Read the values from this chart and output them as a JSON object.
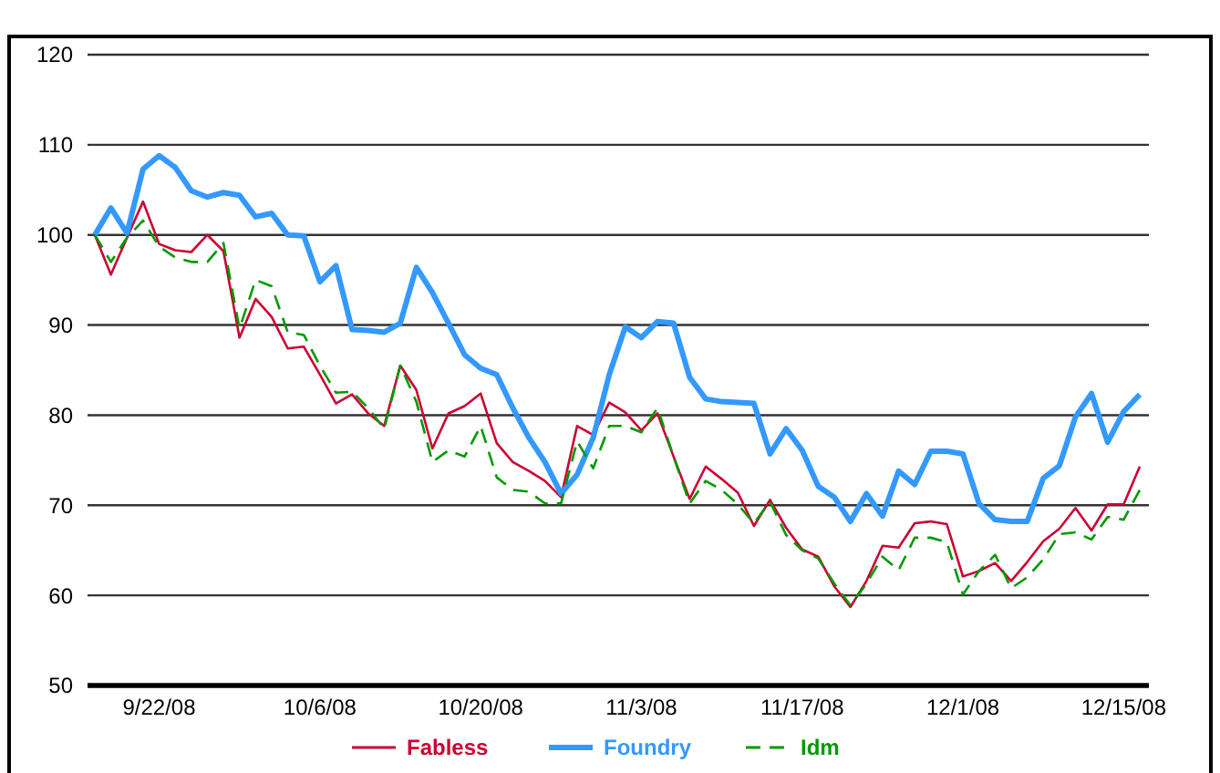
{
  "chart_data": {
    "type": "line",
    "categories": [
      null,
      null,
      null,
      null,
      "9/22/08",
      null,
      null,
      null,
      null,
      null,
      null,
      null,
      null,
      null,
      "10/6/08",
      null,
      null,
      null,
      null,
      null,
      null,
      null,
      null,
      null,
      "10/20/08",
      null,
      null,
      null,
      null,
      null,
      null,
      null,
      null,
      null,
      "11/3/08",
      null,
      null,
      null,
      null,
      null,
      null,
      null,
      null,
      null,
      "11/17/08",
      null,
      null,
      null,
      null,
      null,
      null,
      null,
      null,
      null,
      "12/1/08",
      null,
      null,
      null,
      null,
      null,
      null,
      null,
      null,
      null,
      "12/15/08",
      null
    ],
    "series": [
      {
        "name": "Fabless",
        "color": "#cc0033",
        "line_style": "solid",
        "values": [
          100,
          95.6,
          99.7,
          103.7,
          99.0,
          98.3,
          98.1,
          100,
          98.2,
          88.6,
          92.9,
          90.9,
          87.4,
          87.6,
          84.5,
          81.3,
          82.3,
          80.2,
          78.8,
          85.5,
          82.8,
          76.3,
          80.2,
          81.0,
          82.4,
          76.9,
          74.8,
          73.8,
          72.7,
          70.9,
          78.8,
          77.8,
          81.4,
          80.3,
          78.3,
          80.2,
          75.4,
          70.7,
          74.3,
          72.9,
          71.4,
          67.7,
          70.6,
          67.5,
          65.1,
          64.3,
          61.0,
          58.7,
          61.6,
          65.5,
          65.3,
          68.0,
          68.2,
          67.9,
          62.1,
          62.7,
          63.6,
          61.6,
          63.7,
          66.0,
          67.4,
          69.7,
          67.2,
          70.1,
          70.1,
          74.3
        ]
      },
      {
        "name": "Foundry",
        "color": "#3399ff",
        "line_style": "solid",
        "values": [
          100,
          103,
          100.2,
          107.3,
          108.8,
          107.5,
          104.9,
          104.2,
          104.7,
          104.4,
          102.0,
          102.4,
          100.0,
          99.9,
          94.8,
          96.6,
          89.5,
          89.4,
          89.2,
          90.2,
          96.4,
          93.6,
          90.2,
          86.7,
          85.2,
          84.5,
          80.8,
          77.5,
          74.8,
          71.3,
          73.4,
          77.5,
          84.5,
          89.8,
          88.6,
          90.4,
          90.2,
          84.2,
          81.8,
          81.5,
          81.4,
          81.3,
          75.7,
          78.5,
          76.1,
          72.1,
          70.9,
          68.2,
          71.3,
          68.8,
          73.8,
          72.3,
          76.0,
          76.0,
          75.7,
          70.2,
          68.4,
          68.2,
          68.2,
          73.0,
          74.4,
          79.8,
          82.4,
          77.0,
          80.4,
          82.3
        ]
      },
      {
        "name": "Idm",
        "color": "#009900",
        "line_style": "dashed",
        "values": [
          100,
          97.0,
          99.7,
          101.6,
          98.7,
          97.5,
          97.0,
          97.0,
          99.1,
          89.6,
          95.0,
          94.3,
          89.2,
          88.9,
          85.5,
          82.5,
          82.6,
          80.8,
          78.5,
          85.5,
          81.5,
          74.8,
          76.1,
          75.4,
          78.8,
          73.1,
          71.7,
          71.5,
          70.2,
          70.2,
          77.1,
          74.1,
          78.8,
          78.8,
          78.1,
          80.8,
          75.4,
          70.2,
          72.7,
          71.7,
          70.1,
          68.0,
          70.4,
          66.7,
          65.0,
          64.1,
          61.3,
          58.9,
          61.3,
          64.3,
          62.8,
          66.4,
          66.4,
          65.9,
          60.1,
          62.7,
          64.5,
          60.8,
          62.0,
          64.0,
          66.8,
          67.0,
          66.2,
          68.7,
          68.4,
          71.7
        ]
      }
    ],
    "ylim": [
      50,
      120
    ],
    "yticks": [
      50,
      60,
      70,
      80,
      90,
      100,
      110,
      120
    ],
    "grid": "y",
    "legend": "bottom",
    "marker": "none"
  }
}
